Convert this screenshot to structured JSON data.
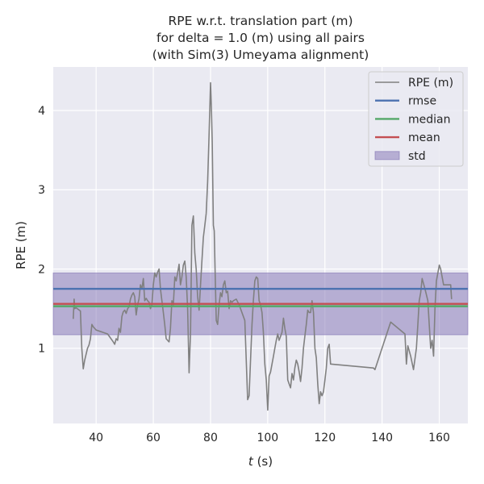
{
  "chart_data": {
    "type": "line",
    "title_lines": [
      "RPE w.r.t. translation part (m)",
      "for delta = 1.0 (m) using all pairs",
      "(with Sim(3) Umeyama alignment)"
    ],
    "xlabel_var": "t",
    "xlabel_unit": " (s)",
    "ylabel": "RPE (m)",
    "xlim": [
      25,
      170
    ],
    "ylim": [
      0.05,
      4.55
    ],
    "xticks": [
      40,
      60,
      80,
      100,
      120,
      140,
      160
    ],
    "yticks": [
      1,
      2,
      3,
      4
    ],
    "grid": true,
    "legend_position": "top-right",
    "colors": {
      "plot_bg": "#eaeaf2",
      "grid": "#ffffff",
      "rpe": "#808080",
      "rmse": "#4c72b0",
      "median": "#55a868",
      "mean": "#c44e52",
      "std": "#8172b3"
    },
    "stats": {
      "rmse": 1.75,
      "median": 1.53,
      "mean": 1.56,
      "std_lower": 1.17,
      "std_upper": 1.95
    },
    "legend": [
      {
        "key": "rpe",
        "label": "RPE (m)",
        "kind": "line"
      },
      {
        "key": "rmse",
        "label": "rmse",
        "kind": "line"
      },
      {
        "key": "median",
        "label": "median",
        "kind": "line"
      },
      {
        "key": "mean",
        "label": "mean",
        "kind": "line"
      },
      {
        "key": "std",
        "label": "std",
        "kind": "patch"
      }
    ],
    "series": [
      {
        "key": "rpe",
        "name": "RPE (m)",
        "x": [
          32.0,
          32.3,
          32.5,
          33.0,
          34.5,
          35.0,
          35.5,
          36.0,
          37.0,
          37.5,
          38.0,
          38.5,
          39.0,
          39.5,
          40.0,
          44.0,
          46.0,
          46.5,
          47.0,
          47.5,
          48.0,
          48.5,
          49.0,
          49.5,
          50.0,
          50.5,
          51.0,
          51.5,
          52.0,
          52.5,
          53.0,
          53.5,
          54.0,
          54.5,
          55.0,
          55.5,
          56.0,
          56.5,
          57.0,
          57.5,
          58.0,
          58.5,
          59.0,
          59.5,
          60.0,
          60.5,
          61.0,
          61.5,
          62.0,
          62.5,
          63.0,
          63.5,
          64.0,
          64.5,
          65.0,
          65.5,
          66.0,
          66.5,
          67.0,
          67.5,
          68.0,
          68.5,
          69.0,
          69.5,
          70.0,
          70.5,
          71.0,
          71.5,
          72.0,
          72.5,
          73.0,
          73.5,
          74.0,
          74.5,
          75.0,
          75.5,
          76.0,
          76.5,
          77.0,
          77.5,
          78.0,
          78.5,
          79.0,
          79.5,
          80.0,
          80.3,
          80.6,
          81.0,
          81.3,
          81.6,
          82.0,
          82.5,
          83.0,
          83.5,
          84.0,
          84.5,
          85.0,
          85.5,
          86.0,
          86.5,
          87.0,
          87.5,
          88.0,
          89.0,
          90.0,
          92.0,
          93.0,
          93.5,
          94.0,
          94.5,
          95.0,
          95.5,
          96.0,
          96.5,
          97.0,
          97.5,
          98.0,
          98.5,
          99.0,
          99.5,
          100.0,
          100.5,
          101.0,
          101.5,
          102.0,
          102.5,
          103.0,
          103.5,
          104.0,
          104.5,
          105.0,
          105.5,
          106.0,
          106.5,
          107.0,
          107.5,
          108.0,
          108.5,
          109.0,
          109.5,
          110.0,
          110.5,
          111.0,
          111.5,
          112.0,
          112.5,
          113.0,
          113.5,
          114.0,
          114.5,
          115.0,
          115.5,
          116.0,
          116.5,
          117.0,
          117.5,
          118.0,
          118.5,
          119.0,
          119.5,
          120.0,
          120.5,
          121.0,
          121.5,
          122.0,
          137.0,
          137.5,
          143.0,
          148.0,
          148.5,
          149.0,
          150.0,
          151.0,
          152.0,
          152.5,
          153.0,
          153.5,
          154.0,
          155.0,
          156.0,
          156.5,
          157.0,
          157.5,
          158.0,
          158.5,
          159.0,
          159.5,
          160.0,
          160.5,
          161.0,
          161.5,
          162.0,
          162.5,
          163.0,
          163.5,
          164.0,
          164.3
        ],
        "y": [
          1.37,
          1.62,
          1.5,
          1.51,
          1.47,
          1.0,
          0.74,
          0.85,
          1.0,
          1.04,
          1.12,
          1.3,
          1.27,
          1.25,
          1.23,
          1.18,
          1.08,
          1.05,
          1.12,
          1.1,
          1.25,
          1.2,
          1.4,
          1.46,
          1.48,
          1.44,
          1.5,
          1.52,
          1.62,
          1.67,
          1.7,
          1.65,
          1.42,
          1.55,
          1.62,
          1.8,
          1.75,
          1.88,
          1.6,
          1.63,
          1.6,
          1.58,
          1.5,
          1.55,
          1.8,
          1.95,
          1.9,
          1.96,
          2.0,
          1.75,
          1.6,
          1.45,
          1.3,
          1.12,
          1.1,
          1.08,
          1.25,
          1.6,
          1.55,
          1.9,
          1.85,
          1.95,
          2.06,
          1.8,
          1.9,
          2.05,
          2.1,
          1.9,
          1.5,
          0.69,
          1.2,
          2.55,
          2.67,
          2.2,
          2.0,
          1.65,
          1.48,
          1.8,
          2.1,
          2.4,
          2.55,
          2.7,
          3.1,
          3.7,
          4.35,
          4.05,
          3.6,
          2.55,
          2.48,
          2.0,
          1.35,
          1.3,
          1.55,
          1.7,
          1.65,
          1.8,
          1.85,
          1.7,
          1.72,
          1.5,
          1.6,
          1.58,
          1.6,
          1.62,
          1.55,
          1.35,
          0.35,
          0.4,
          0.85,
          1.3,
          1.6,
          1.85,
          1.9,
          1.88,
          1.6,
          1.55,
          1.45,
          1.2,
          0.8,
          0.6,
          0.22,
          0.65,
          0.7,
          0.8,
          0.9,
          1.0,
          1.1,
          1.18,
          1.1,
          1.15,
          1.2,
          1.38,
          1.25,
          1.15,
          0.6,
          0.55,
          0.5,
          0.68,
          0.6,
          0.75,
          0.85,
          0.8,
          0.7,
          0.58,
          0.75,
          1.0,
          1.15,
          1.3,
          1.48,
          1.45,
          1.45,
          1.6,
          1.45,
          1.0,
          0.88,
          0.55,
          0.3,
          0.45,
          0.4,
          0.45,
          0.6,
          0.75,
          1.0,
          1.05,
          0.8,
          0.75,
          0.73,
          1.33,
          1.18,
          0.8,
          1.03,
          0.9,
          0.73,
          1.0,
          1.3,
          1.6,
          1.7,
          1.88,
          1.75,
          1.6,
          1.3,
          1.0,
          1.1,
          0.9,
          1.5,
          1.85,
          1.95,
          2.05,
          2.0,
          1.9,
          1.8,
          1.8,
          1.8,
          1.8,
          1.8,
          1.8,
          1.62
        ]
      }
    ]
  }
}
